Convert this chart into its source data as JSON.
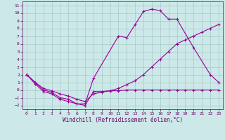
{
  "xlabel": "Windchill (Refroidissement éolien,°C)",
  "background_color": "#cce8e8",
  "grid_color": "#b0c8c8",
  "line_color": "#990099",
  "ylim": [
    -2.5,
    11.5
  ],
  "xlim": [
    -0.5,
    23.5
  ],
  "yticks": [
    -2,
    -1,
    0,
    1,
    2,
    3,
    4,
    5,
    6,
    7,
    8,
    9,
    10,
    11
  ],
  "xticks": [
    0,
    1,
    2,
    3,
    4,
    5,
    6,
    7,
    8,
    9,
    10,
    11,
    12,
    13,
    14,
    15,
    16,
    17,
    18,
    19,
    20,
    21,
    22,
    23
  ],
  "curve1_x": [
    0,
    1,
    2,
    3,
    4,
    5,
    6,
    7,
    8,
    11,
    12,
    13,
    14,
    15,
    16,
    17,
    18,
    20,
    22,
    23
  ],
  "curve1_y": [
    2.0,
    1.0,
    0.0,
    -0.3,
    -1.0,
    -1.2,
    -1.8,
    -1.8,
    1.5,
    7.0,
    6.8,
    8.5,
    10.2,
    10.5,
    10.3,
    9.2,
    9.2,
    5.5,
    2.0,
    1.0
  ],
  "curve2_x": [
    0,
    1,
    2,
    3,
    4,
    5,
    6,
    7,
    8,
    9,
    10,
    11,
    12,
    13,
    14,
    15,
    16,
    17,
    18,
    19,
    20,
    21,
    22,
    23
  ],
  "curve2_y": [
    2.0,
    1.0,
    0.2,
    -0.1,
    -0.5,
    -0.8,
    -1.2,
    -1.5,
    -0.5,
    -0.3,
    -0.1,
    0.2,
    0.7,
    1.2,
    2.0,
    3.0,
    4.0,
    5.0,
    6.0,
    6.5,
    7.0,
    7.5,
    8.0,
    8.5
  ],
  "curve3_x": [
    0,
    1,
    2,
    3,
    4,
    5,
    6,
    7,
    8,
    9,
    10,
    11,
    12,
    13,
    14,
    15,
    16,
    17,
    18,
    19,
    20,
    21,
    22,
    23
  ],
  "curve3_y": [
    2.0,
    0.8,
    -0.2,
    -0.5,
    -1.2,
    -1.5,
    -1.8,
    -2.0,
    -0.2,
    -0.2,
    -0.1,
    -0.1,
    0.0,
    0.0,
    0.0,
    0.0,
    0.0,
    0.0,
    0.0,
    0.0,
    0.0,
    0.0,
    0.0,
    0.0
  ]
}
